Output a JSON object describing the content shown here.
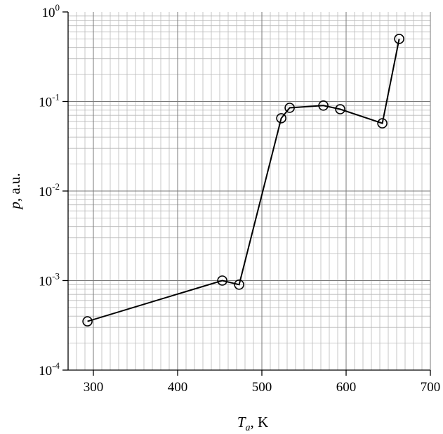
{
  "chart_data": {
    "type": "line",
    "title": "",
    "xlabel": {
      "main": "T",
      "sub": "a",
      "suffix": ", K"
    },
    "ylabel": {
      "main": "p",
      "suffix": ", a.u."
    },
    "xlim": [
      270,
      700
    ],
    "ylim": [
      0.0001,
      1
    ],
    "yscale": "log",
    "grid": true,
    "legend": "none",
    "x_ticks": [
      300,
      400,
      500,
      600,
      700
    ],
    "x_tick_labels": [
      "300",
      "400",
      "500",
      "600",
      "700"
    ],
    "y_ticks": [
      {
        "value": 1,
        "base": "10",
        "exp": "0"
      },
      {
        "value": 0.1,
        "base": "10",
        "exp": "-1"
      },
      {
        "value": 0.01,
        "base": "10",
        "exp": "-2"
      },
      {
        "value": 0.001,
        "base": "10",
        "exp": "-3"
      },
      {
        "value": 0.0001,
        "base": "10",
        "exp": "-4"
      }
    ],
    "series": [
      {
        "marker": "open-circle",
        "color": "#000000",
        "x": [
          293,
          453,
          473,
          523,
          533,
          573,
          593,
          643,
          663
        ],
        "y": [
          0.00035,
          0.001,
          0.0009,
          0.065,
          0.085,
          0.09,
          0.082,
          0.057,
          0.5
        ]
      }
    ]
  }
}
